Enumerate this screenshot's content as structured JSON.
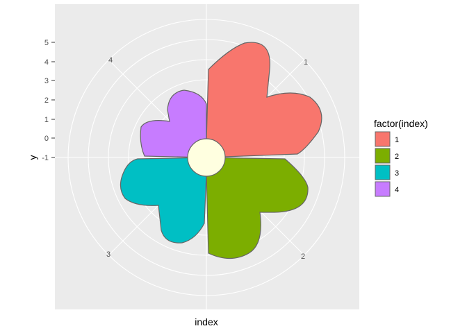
{
  "chart_data": {
    "type": "polar-area",
    "coord": "polar",
    "xlabel": "index",
    "ylabel": "y",
    "y_ticks": [
      "5",
      "4",
      "3",
      "2",
      "1",
      "0",
      "-1"
    ],
    "angle_ticks": [
      "1",
      "2",
      "3",
      "4"
    ],
    "series_field": "factor(index)",
    "categories": [
      "1",
      "2",
      "3",
      "4"
    ],
    "max_radius_y": [
      5,
      3.8,
      3.2,
      2.4
    ],
    "inner_hole_radius_y": -1,
    "grid": true,
    "legend": {
      "title": "factor(index)",
      "position": "right"
    },
    "colors": {
      "1": "#F8766D",
      "2": "#7CAE00",
      "3": "#00BFC4",
      "4": "#C77CFF",
      "hole": "#FFFFE0",
      "panel": "#EBEBEB",
      "grid": "#FFFFFF",
      "outline": "#666666"
    }
  }
}
